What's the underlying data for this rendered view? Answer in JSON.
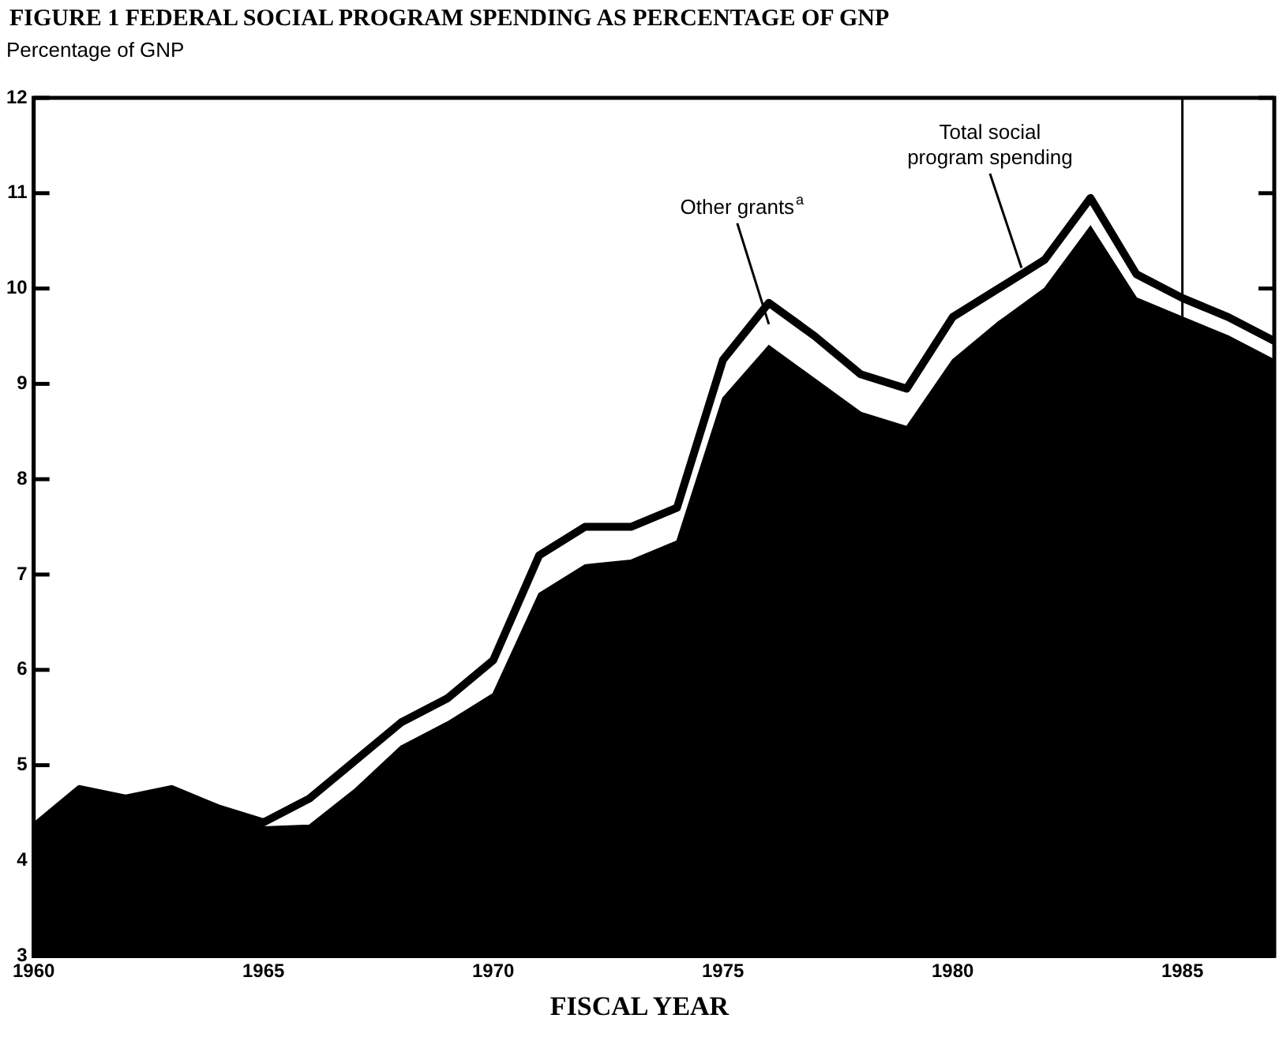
{
  "chart_data": {
    "type": "line",
    "title": "FIGURE 1  FEDERAL SOCIAL PROGRAM SPENDING AS PERCENTAGE OF GNP",
    "ylabel": "Percentage of GNP",
    "xlabel": "FISCAL YEAR",
    "x": [
      1960,
      1961,
      1962,
      1963,
      1964,
      1965,
      1966,
      1967,
      1968,
      1969,
      1970,
      1971,
      1972,
      1973,
      1974,
      1975,
      1976,
      1977,
      1978,
      1979,
      1980,
      1981,
      1982,
      1983,
      1984,
      1985,
      1986,
      1987
    ],
    "series": [
      {
        "type": "area",
        "color": "#000000",
        "values": [
          4.35,
          4.75,
          4.65,
          4.75,
          4.55,
          4.35,
          4.37,
          4.75,
          5.2,
          5.45,
          5.75,
          6.8,
          7.1,
          7.15,
          7.35,
          8.85,
          9.4,
          9.05,
          8.7,
          8.55,
          9.25,
          9.65,
          10.0,
          10.65,
          9.9,
          9.7,
          9.5,
          9.25
        ]
      },
      {
        "type": "line",
        "name": "Total social program spending",
        "color": "#000000",
        "values": [
          4.35,
          4.75,
          4.65,
          4.75,
          4.55,
          4.4,
          4.65,
          5.05,
          5.45,
          5.7,
          6.1,
          7.2,
          7.5,
          7.5,
          7.7,
          9.25,
          9.85,
          9.5,
          9.1,
          8.95,
          9.7,
          10.0,
          10.3,
          10.95,
          10.15,
          9.9,
          9.7,
          9.45
        ]
      }
    ],
    "annotations": [
      "Other grants$^{a}$"
    ],
    "ref_lines": [
      {
        "axis": "x",
        "value": 1985,
        "color": "#000000"
      }
    ],
    "xlim": [
      1960,
      1987
    ],
    "ylim": [
      3,
      12
    ],
    "xticks": [
      1960,
      1965,
      1970,
      1975,
      1980,
      1985
    ],
    "yticks": [
      3,
      4,
      5,
      6,
      7,
      8,
      9,
      10,
      11,
      12
    ],
    "grid": false,
    "legend": false,
    "marker": "none",
    "line_style": "solid"
  }
}
